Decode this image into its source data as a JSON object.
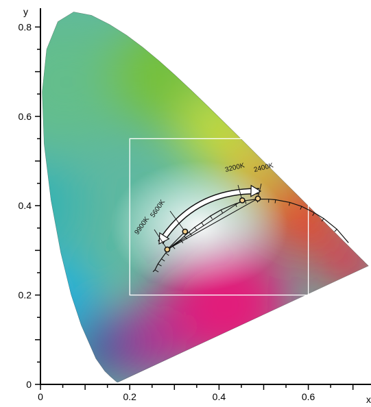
{
  "chart_data": {
    "type": "scatter",
    "title": "",
    "xlabel": "x",
    "ylabel": "y",
    "xlim": [
      0,
      0.74
    ],
    "ylim": [
      0,
      0.85
    ],
    "x_ticks": [
      "0",
      "0.2",
      "0.4",
      "0.6"
    ],
    "y_ticks": [
      "0",
      "0.2",
      "0.4",
      "0.6",
      "0.8"
    ],
    "spectral_locus": {
      "x": [
        0.1741,
        0.1738,
        0.1732,
        0.1714,
        0.1689,
        0.1644,
        0.1566,
        0.144,
        0.1241,
        0.0913,
        0.0687,
        0.0454,
        0.0235,
        0.0082,
        0.0039,
        0.0139,
        0.0389,
        0.0743,
        0.1142,
        0.1547,
        0.1929,
        0.2296,
        0.2658,
        0.3016,
        0.3373,
        0.3731,
        0.4087,
        0.4441,
        0.4788,
        0.5125,
        0.5448,
        0.5752,
        0.6029,
        0.627,
        0.6482,
        0.6658,
        0.6801,
        0.6915,
        0.7006,
        0.7079,
        0.714,
        0.719,
        0.723,
        0.726,
        0.7283,
        0.73,
        0.7347
      ],
      "y": [
        0.005,
        0.0049,
        0.0048,
        0.0051,
        0.0069,
        0.0109,
        0.0177,
        0.0297,
        0.0578,
        0.1327,
        0.2007,
        0.295,
        0.4127,
        0.5384,
        0.6548,
        0.7502,
        0.812,
        0.8338,
        0.8262,
        0.8059,
        0.7816,
        0.7543,
        0.7243,
        0.6923,
        0.6589,
        0.6245,
        0.5896,
        0.5547,
        0.5202,
        0.4866,
        0.4544,
        0.4242,
        0.3965,
        0.3725,
        0.3514,
        0.334,
        0.3197,
        0.3083,
        0.2993,
        0.292,
        0.2859,
        0.2809,
        0.277,
        0.274,
        0.2717,
        0.27,
        0.2653
      ]
    },
    "planckian_locus": {
      "x": [
        0.252,
        0.2565,
        0.2631,
        0.2709,
        0.2806,
        0.2952,
        0.3135,
        0.3221,
        0.3325,
        0.3451,
        0.3608,
        0.3805,
        0.4044,
        0.4369,
        0.4589,
        0.4858,
        0.5113,
        0.5267,
        0.5586,
        0.585,
        0.6133,
        0.6345,
        0.664,
        0.69
      ],
      "y": [
        0.252,
        0.2564,
        0.2697,
        0.2812,
        0.2943,
        0.3102,
        0.3236,
        0.3318,
        0.3408,
        0.3516,
        0.3621,
        0.3768,
        0.3907,
        0.4042,
        0.4114,
        0.4147,
        0.4146,
        0.4133,
        0.4074,
        0.3985,
        0.3842,
        0.3712,
        0.3474,
        0.317
      ]
    },
    "gamut_box": {
      "x": [
        0.2,
        0.6
      ],
      "y": [
        0.2,
        0.55
      ]
    },
    "cct_points": [
      {
        "label": "9900K",
        "x": 0.284,
        "y": 0.302
      },
      {
        "label": "5600K",
        "x": 0.324,
        "y": 0.342
      },
      {
        "label": "3200K",
        "x": 0.452,
        "y": 0.412
      },
      {
        "label": "2400K",
        "x": 0.487,
        "y": 0.416
      }
    ],
    "grid": false,
    "legend": "none"
  }
}
